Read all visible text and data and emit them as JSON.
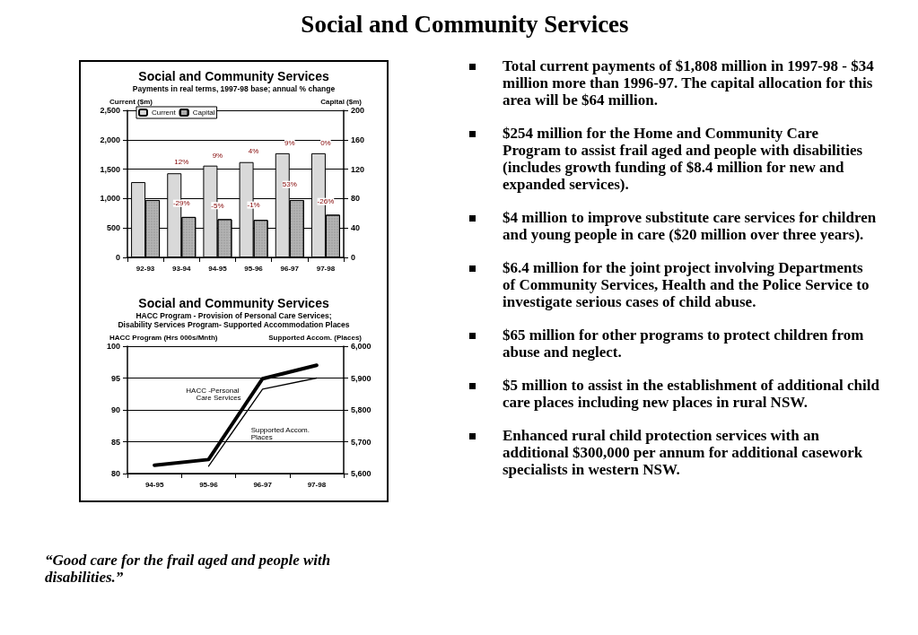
{
  "chart_data": [
    {
      "type": "bar",
      "title": "Social and Community Services",
      "subtitle": "Payments in real terms, 1997-98 base; annual % change",
      "ylabel": "Current ($m)",
      "y2label": "Capital ($m)",
      "categories": [
        "92-93",
        "93-94",
        "94-95",
        "95-96",
        "96-97",
        "97-98"
      ],
      "series": [
        {
          "name": "Current",
          "color": "#d9d9d9",
          "values": [
            1280,
            1430,
            1560,
            1620,
            1770,
            1770
          ]
        },
        {
          "name": "Capital",
          "color": "#b3b3b3",
          "axis": "y2",
          "values": [
            78,
            55,
            52,
            51,
            78,
            58
          ]
        }
      ],
      "annotations": [
        {
          "text": "12%",
          "x": "93-94",
          "y": 1620
        },
        {
          "text": "9%",
          "x": "94-95",
          "y": 1730
        },
        {
          "text": "4%",
          "x": "95-96",
          "y": 1800
        },
        {
          "text": "9%",
          "x": "96-97",
          "y": 1950
        },
        {
          "text": "0%",
          "x": "97-98",
          "y": 1940
        },
        {
          "text": "-29%",
          "x": "93-94",
          "y": 920
        },
        {
          "text": "-5%",
          "x": "94-95",
          "y": 880
        },
        {
          "text": "-1%",
          "x": "95-96",
          "y": 890
        },
        {
          "text": "53%",
          "x": "96-97",
          "y": 1240
        },
        {
          "text": "-26%",
          "x": "97-98",
          "y": 950
        }
      ],
      "ylim": [
        0,
        2500
      ],
      "yticks": [
        0,
        500,
        {
          "value": 1000,
          "label": "1,000"
        },
        {
          "value": 1500,
          "label": "1,500"
        },
        {
          "value": 2000,
          "label": "2,000"
        },
        {
          "value": 2500,
          "label": "2,500"
        }
      ],
      "y2lim": [
        0,
        200
      ],
      "y2ticks": [
        0,
        40,
        80,
        120,
        160,
        200
      ],
      "grid": "y",
      "legend": "top left"
    },
    {
      "type": "line",
      "title": "Social and Community Services",
      "subtitle": "HACC Program - Provision of Personal Care Services;\nDisability Services Program- Supported Accommodation Places",
      "ylabel": "HACC Program (Hrs 000s/Mnth)",
      "y2label": "Supported Accom. (Places)",
      "categories": [
        "94-95",
        "95-96",
        "96-97",
        "97-98"
      ],
      "series": [
        {
          "name": "HACC -Personal Care Services",
          "color": "#000000",
          "values": [
            81.3,
            82.2,
            94.9,
            97.0
          ]
        },
        {
          "name": "Supported Accom. Places",
          "color": "#000000",
          "axis": "y2",
          "values": [
            null,
            5623,
            5865,
            5900
          ]
        }
      ],
      "ylim": [
        80,
        100
      ],
      "yticks": [
        80,
        85,
        90,
        95,
        100
      ],
      "y2lim": [
        5600,
        6000
      ],
      "y2ticks": [
        {
          "value": 5600,
          "label": "5,600"
        },
        {
          "value": 5700,
          "label": "5,700"
        },
        {
          "value": 5800,
          "label": "5,800"
        },
        {
          "value": 5900,
          "label": "5,900"
        },
        {
          "value": 6000,
          "label": "6,000"
        }
      ],
      "grid": "y",
      "marker": "none",
      "line_style": "solid",
      "legend": false
    },
    {
      "type": "other",
      "title": "Social and Community Services",
      "annotations": [
        "Total current payments of $1,808 million in 1997-98 - $34 million more than 1996-97.  The capital allocation for this area will be $64 million.",
        "$254 million for the Home and Community Care Program to assist frail aged and people with disabilities  (includes growth funding of $8.4 million for new and expanded services).",
        "$4 million to improve substitute care services for children and young people in care ($20 million over three years).",
        "$6.4 million for the joint  project involving Departments of Community Services, Health and the Police Service to investigate serious cases of child abuse.",
        "$65 million for other programs to protect children from abuse and neglect.",
        "$5 million to assist in the establishment of additional child care places including new places in rural NSW.",
        "Enhanced rural child protection services with an additional $300,000 per annum for additional casework specialists in western NSW.",
        "“Good care for the frail aged and people with disabilities.”"
      ]
    }
  ]
}
